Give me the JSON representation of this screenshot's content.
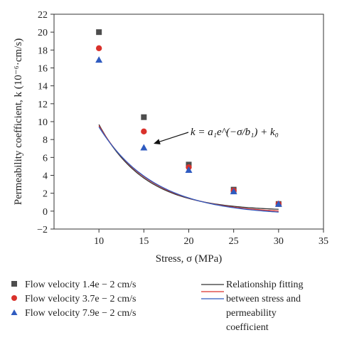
{
  "chart_data": {
    "type": "scatter",
    "xlabel": "Stress, σ (MPa)",
    "ylabel": "Permeability coefficient, k (10⁻⁶·cm/s)",
    "xlim": [
      5,
      35
    ],
    "ylim": [
      -2,
      22
    ],
    "xticks": [
      10,
      15,
      20,
      25,
      30,
      35
    ],
    "yticks": [
      -2,
      0,
      2,
      4,
      6,
      8,
      10,
      12,
      14,
      16,
      18,
      20,
      22
    ],
    "grid": false,
    "annotation": "k = a₁e^(−σ/b₁) + k₀",
    "legend_placement": "below",
    "series": [
      {
        "name": "Flow velocity 1.4e − 2 cm/s",
        "marker": "square",
        "color": "#4d4d4d",
        "x": [
          10,
          15,
          20,
          25,
          30
        ],
        "y": [
          20.0,
          10.5,
          5.2,
          2.4,
          0.8
        ]
      },
      {
        "name": "Flow velocity 3.7e − 2 cm/s",
        "marker": "circle",
        "color": "#d9312b",
        "x": [
          10,
          15,
          20,
          25,
          30
        ],
        "y": [
          18.2,
          8.9,
          4.9,
          2.3,
          0.8
        ]
      },
      {
        "name": "Flow velocity 7.9e − 2 cm/s",
        "marker": "triangle",
        "color": "#2f5bc0",
        "x": [
          10,
          15,
          20,
          25,
          30
        ],
        "y": [
          16.9,
          7.1,
          4.6,
          2.2,
          0.8
        ]
      }
    ],
    "fits": [
      {
        "color": "#333333",
        "a1": 66.2,
        "b1": 5.2,
        "k0": 0.0
      },
      {
        "color": "#d9312b",
        "a1": 55.2,
        "b1": 5.8,
        "k0": -0.3
      },
      {
        "color": "#2f5bc0",
        "a1": 49.7,
        "b1": 6.2,
        "k0": -0.5
      }
    ],
    "fit_legend": {
      "line_colors": [
        "#333333",
        "#d9312b",
        "#2f5bc0"
      ],
      "lines": [
        "Relationship fitting",
        "between stress and",
        "permeability",
        "coefficient"
      ]
    }
  }
}
